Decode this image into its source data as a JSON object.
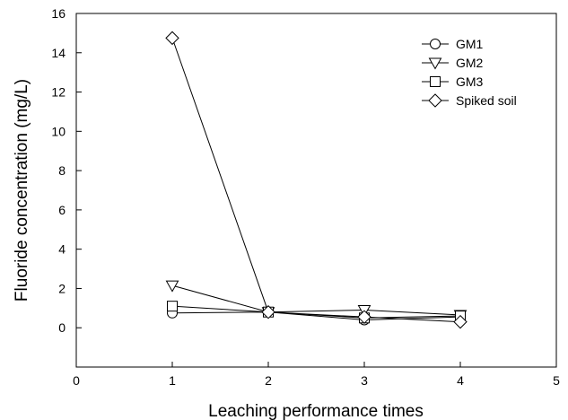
{
  "chart_data": {
    "type": "line",
    "xlabel": "Leaching performance times",
    "ylabel": "Fluoride concentration (mg/L)",
    "xlim": [
      0,
      5
    ],
    "ylim": [
      -2,
      16
    ],
    "x_ticks": [
      "0",
      "1",
      "2",
      "3",
      "4",
      "5"
    ],
    "y_ticks": [
      "0",
      "2",
      "4",
      "6",
      "8",
      "10",
      "12",
      "14",
      "16"
    ],
    "grid": false,
    "legend_position": "top-right",
    "series": [
      {
        "name": "GM1",
        "marker": "circle",
        "x": [
          1,
          2,
          3,
          4
        ],
        "y": [
          0.75,
          0.8,
          0.4,
          0.55
        ]
      },
      {
        "name": "GM2",
        "marker": "triangle-down",
        "x": [
          1,
          2,
          3,
          4
        ],
        "y": [
          2.15,
          0.8,
          0.9,
          0.65
        ]
      },
      {
        "name": "GM3",
        "marker": "square",
        "x": [
          1,
          2,
          3,
          4
        ],
        "y": [
          1.1,
          0.8,
          0.5,
          0.6
        ]
      },
      {
        "name": "Spiked soil",
        "marker": "diamond",
        "x": [
          1,
          2,
          3,
          4
        ],
        "y": [
          14.75,
          0.8,
          0.55,
          0.3
        ]
      }
    ]
  }
}
